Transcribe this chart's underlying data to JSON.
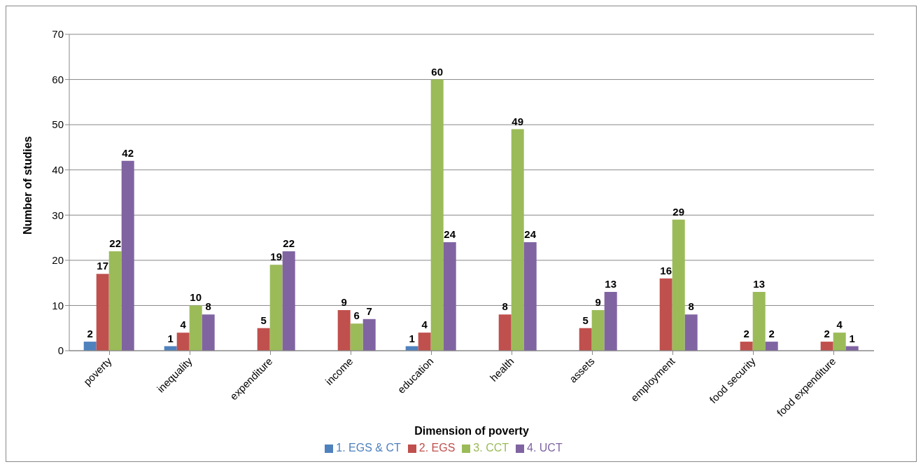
{
  "chart_data": {
    "type": "bar",
    "xlabel": "Dimension of poverty",
    "ylabel": "Number of studies",
    "categories": [
      "poverty",
      "inequality",
      "expenditure",
      "income",
      "education",
      "health",
      "assets",
      "employment",
      "food security",
      "food expenditure"
    ],
    "series": [
      {
        "name": "1. EGS & CT",
        "color": "#4f81bd",
        "values": [
          2,
          1,
          null,
          null,
          1,
          null,
          null,
          null,
          null,
          null
        ]
      },
      {
        "name": "2. EGS",
        "color": "#c0504d",
        "values": [
          17,
          4,
          5,
          9,
          4,
          8,
          5,
          16,
          2,
          2
        ]
      },
      {
        "name": "3. CCT",
        "color": "#9bbb59",
        "values": [
          22,
          10,
          19,
          6,
          60,
          49,
          9,
          29,
          13,
          4
        ]
      },
      {
        "name": "4. UCT",
        "color": "#8064a2",
        "values": [
          42,
          8,
          22,
          7,
          24,
          24,
          13,
          8,
          2,
          1
        ]
      }
    ],
    "ylim": [
      0,
      70
    ],
    "yticks": [
      0,
      10,
      20,
      30,
      40,
      50,
      60,
      70
    ],
    "grid": "y",
    "legend": "bottom",
    "data_labels": true
  }
}
